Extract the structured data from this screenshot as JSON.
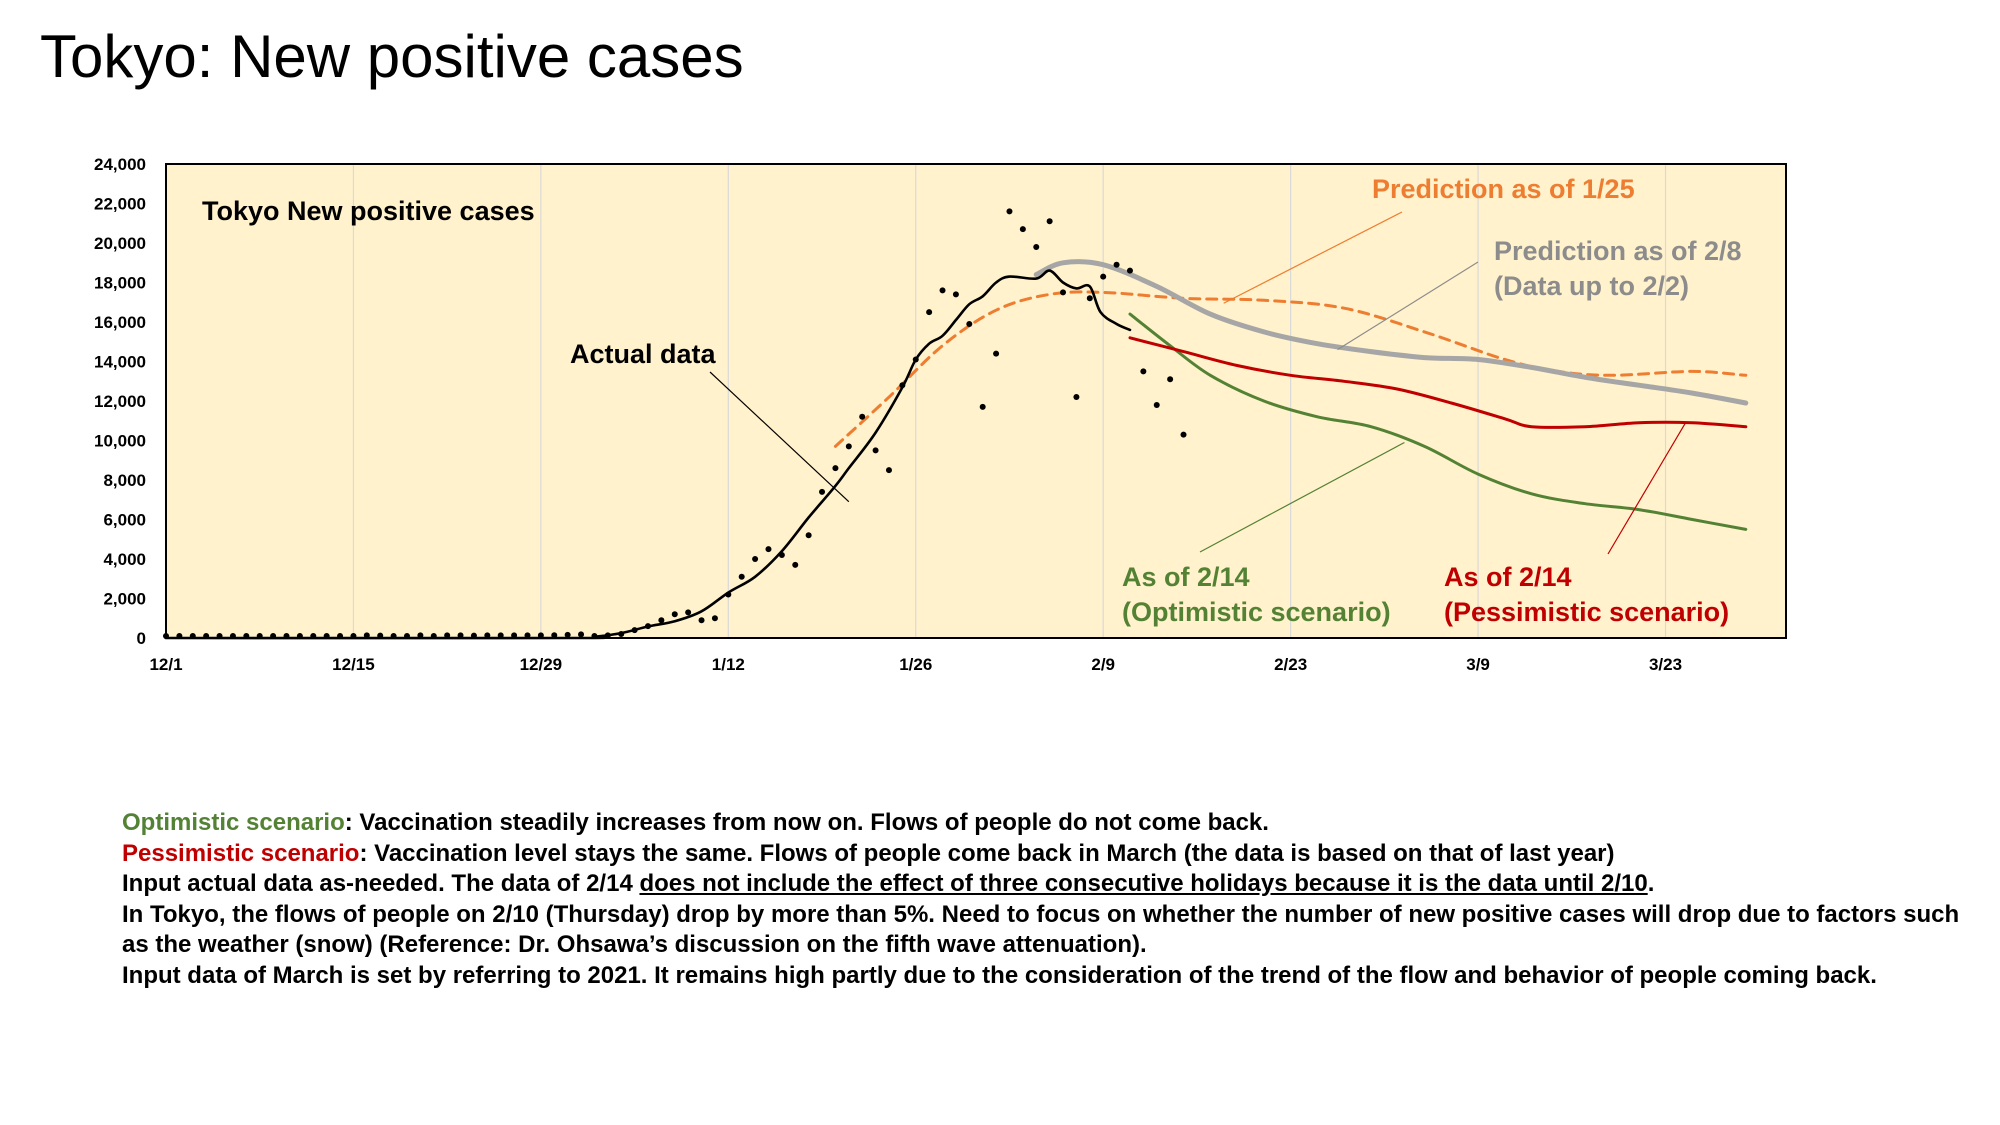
{
  "page": {
    "title": "Tokyo: New positive cases"
  },
  "chart_data": {
    "type": "line",
    "title": "Tokyo  New positive cases",
    "ylim": [
      0,
      24000
    ],
    "y_ticks": [
      "0",
      "2,000",
      "4,000",
      "6,000",
      "8,000",
      "10,000",
      "12,000",
      "14,000",
      "16,000",
      "18,000",
      "20,000",
      "22,000",
      "24,000"
    ],
    "x_start": "12/1",
    "x_ticks": [
      {
        "day": 0,
        "label": "12/1"
      },
      {
        "day": 14,
        "label": "12/15"
      },
      {
        "day": 28,
        "label": "12/29"
      },
      {
        "day": 42,
        "label": "1/12"
      },
      {
        "day": 56,
        "label": "1/26"
      },
      {
        "day": 70,
        "label": "2/9"
      },
      {
        "day": 84,
        "label": "2/23"
      },
      {
        "day": 98,
        "label": "3/9"
      },
      {
        "day": 112,
        "label": "3/23"
      }
    ],
    "grid": "vertical",
    "background": "#fff2cc",
    "annotations": {
      "actual": "Actual data",
      "pred125": "Prediction as of 1/25",
      "pred28_line1": "Prediction as of 2/8",
      "pred28_line2": "(Data up to 2/2)",
      "opt_line1": "As of 2/14",
      "opt_line2": "(Optimistic scenario)",
      "pes_line1": "As of 2/14",
      "pes_line2": "(Pessimistic scenario)"
    },
    "series": [
      {
        "key": "daily",
        "kind": "points",
        "color": "#000000",
        "points": [
          [
            0,
            0
          ],
          [
            1,
            0
          ],
          [
            2,
            0
          ],
          [
            3,
            0
          ],
          [
            4,
            0
          ],
          [
            5,
            0
          ],
          [
            6,
            0
          ],
          [
            7,
            0
          ],
          [
            8,
            0
          ],
          [
            9,
            0
          ],
          [
            10,
            0
          ],
          [
            11,
            0
          ],
          [
            12,
            0
          ],
          [
            13,
            0
          ],
          [
            14,
            0
          ],
          [
            15,
            30
          ],
          [
            16,
            20
          ],
          [
            17,
            0
          ],
          [
            18,
            0
          ],
          [
            19,
            30
          ],
          [
            20,
            0
          ],
          [
            21,
            30
          ],
          [
            22,
            30
          ],
          [
            23,
            20
          ],
          [
            24,
            30
          ],
          [
            25,
            30
          ],
          [
            26,
            30
          ],
          [
            27,
            30
          ],
          [
            28,
            30
          ],
          [
            29,
            40
          ],
          [
            30,
            60
          ],
          [
            31,
            80
          ],
          [
            32,
            100
          ],
          [
            33,
            130
          ],
          [
            34,
            200
          ],
          [
            35,
            400
          ],
          [
            36,
            600
          ],
          [
            37,
            900
          ],
          [
            38,
            1200
          ],
          [
            39,
            1300
          ],
          [
            40,
            900
          ],
          [
            41,
            1000
          ],
          [
            42,
            2200
          ],
          [
            43,
            3100
          ],
          [
            44,
            4000
          ],
          [
            45,
            4500
          ],
          [
            46,
            4200
          ],
          [
            47,
            3700
          ],
          [
            48,
            5200
          ],
          [
            49,
            7400
          ],
          [
            50,
            8600
          ],
          [
            51,
            9700
          ],
          [
            52,
            11200
          ],
          [
            53,
            9500
          ],
          [
            54,
            8500
          ],
          [
            55,
            12800
          ],
          [
            56,
            14100
          ],
          [
            57,
            16500
          ],
          [
            58,
            17600
          ],
          [
            59,
            17400
          ],
          [
            60,
            15900
          ],
          [
            61,
            11700
          ],
          [
            62,
            14400
          ],
          [
            63,
            21600
          ],
          [
            64,
            20700
          ],
          [
            65,
            19800
          ],
          [
            66,
            21100
          ],
          [
            67,
            17500
          ],
          [
            68,
            12200
          ],
          [
            69,
            17200
          ],
          [
            70,
            18300
          ],
          [
            71,
            18900
          ],
          [
            72,
            18600
          ],
          [
            73,
            13500
          ],
          [
            74,
            11800
          ],
          [
            75,
            13100
          ],
          [
            76,
            10300
          ]
        ]
      },
      {
        "key": "actual",
        "name": "Actual data",
        "color": "#000000",
        "points": [
          [
            0,
            0
          ],
          [
            30,
            0
          ],
          [
            32,
            60
          ],
          [
            34,
            250
          ],
          [
            36,
            580
          ],
          [
            38,
            850
          ],
          [
            40,
            1350
          ],
          [
            42,
            2300
          ],
          [
            44,
            3100
          ],
          [
            46,
            4400
          ],
          [
            48,
            6100
          ],
          [
            50,
            7700
          ],
          [
            51,
            8600
          ],
          [
            53,
            10400
          ],
          [
            55,
            12700
          ],
          [
            56,
            14100
          ],
          [
            57,
            14900
          ],
          [
            58,
            15300
          ],
          [
            59,
            16100
          ],
          [
            60,
            16900
          ],
          [
            61,
            17300
          ],
          [
            62,
            18000
          ],
          [
            63,
            18300
          ],
          [
            65,
            18200
          ],
          [
            66,
            18600
          ],
          [
            67,
            18000
          ],
          [
            68,
            17700
          ],
          [
            69,
            17800
          ],
          [
            69.8,
            16500
          ],
          [
            71,
            15900
          ],
          [
            72,
            15600
          ]
        ]
      },
      {
        "key": "pred125",
        "name": "Prediction as of 1/25",
        "color": "#ed7d31",
        "dashed": true,
        "points": [
          [
            50,
            9700
          ],
          [
            54,
            12200
          ],
          [
            58,
            14800
          ],
          [
            62,
            16600
          ],
          [
            66,
            17400
          ],
          [
            70,
            17500
          ],
          [
            76,
            17200
          ],
          [
            82,
            17100
          ],
          [
            88,
            16700
          ],
          [
            94,
            15500
          ],
          [
            100,
            14100
          ],
          [
            104,
            13500
          ],
          [
            108,
            13300
          ],
          [
            114,
            13500
          ],
          [
            118,
            13300
          ]
        ]
      },
      {
        "key": "pred28",
        "name": "Prediction as of 2/8",
        "color": "#a6a6a6",
        "points": [
          [
            65,
            18400
          ],
          [
            67,
            19000
          ],
          [
            70,
            18900
          ],
          [
            74,
            17800
          ],
          [
            78,
            16400
          ],
          [
            82,
            15500
          ],
          [
            86,
            14900
          ],
          [
            90,
            14500
          ],
          [
            94,
            14200
          ],
          [
            98,
            14100
          ],
          [
            102,
            13700
          ],
          [
            106,
            13200
          ],
          [
            110,
            12800
          ],
          [
            114,
            12400
          ],
          [
            118,
            11900
          ]
        ]
      },
      {
        "key": "optimistic",
        "name": "As of 2/14 (Optimistic scenario)",
        "color": "#548235",
        "points": [
          [
            72,
            16400
          ],
          [
            75,
            14800
          ],
          [
            78,
            13300
          ],
          [
            82,
            12000
          ],
          [
            86,
            11200
          ],
          [
            90,
            10700
          ],
          [
            94,
            9700
          ],
          [
            98,
            8300
          ],
          [
            102,
            7300
          ],
          [
            106,
            6800
          ],
          [
            110,
            6500
          ],
          [
            114,
            6000
          ],
          [
            118,
            5500
          ]
        ]
      },
      {
        "key": "pessimistic",
        "name": "As of 2/14 (Pessimistic scenario)",
        "color": "#c00000",
        "points": [
          [
            72,
            15200
          ],
          [
            76,
            14500
          ],
          [
            80,
            13800
          ],
          [
            84,
            13300
          ],
          [
            88,
            13000
          ],
          [
            92,
            12600
          ],
          [
            96,
            11900
          ],
          [
            100,
            11100
          ],
          [
            102,
            10700
          ],
          [
            106,
            10700
          ],
          [
            110,
            10900
          ],
          [
            114,
            10900
          ],
          [
            118,
            10700
          ]
        ]
      }
    ]
  },
  "notes": {
    "line1_label": "Optimistic scenario",
    "line1_text": ": Vaccination steadily increases from now on. Flows of people do not come back.",
    "line2_label": "Pessimistic scenario",
    "line2_text": ": Vaccination level stays the same. Flows of people come back in March (the data is based on that of last year)",
    "line3_pre": "Input actual data as-needed. The data of 2/14 ",
    "line3_underline": "does not include the effect of three consecutive holidays because it is the data until 2/10",
    "line3_post": ".",
    "line4": "In Tokyo, the flows of people on 2/10 (Thursday) drop by more than 5%. Need to focus on whether the number of new positive cases will drop due to factors such as the weather (snow) (Reference: Dr. Ohsawa’s discussion on the fifth wave attenuation).",
    "line5": "Input data of March is set by referring to 2021. It remains high partly due to the consideration of the trend of the flow and behavior of people coming back."
  }
}
